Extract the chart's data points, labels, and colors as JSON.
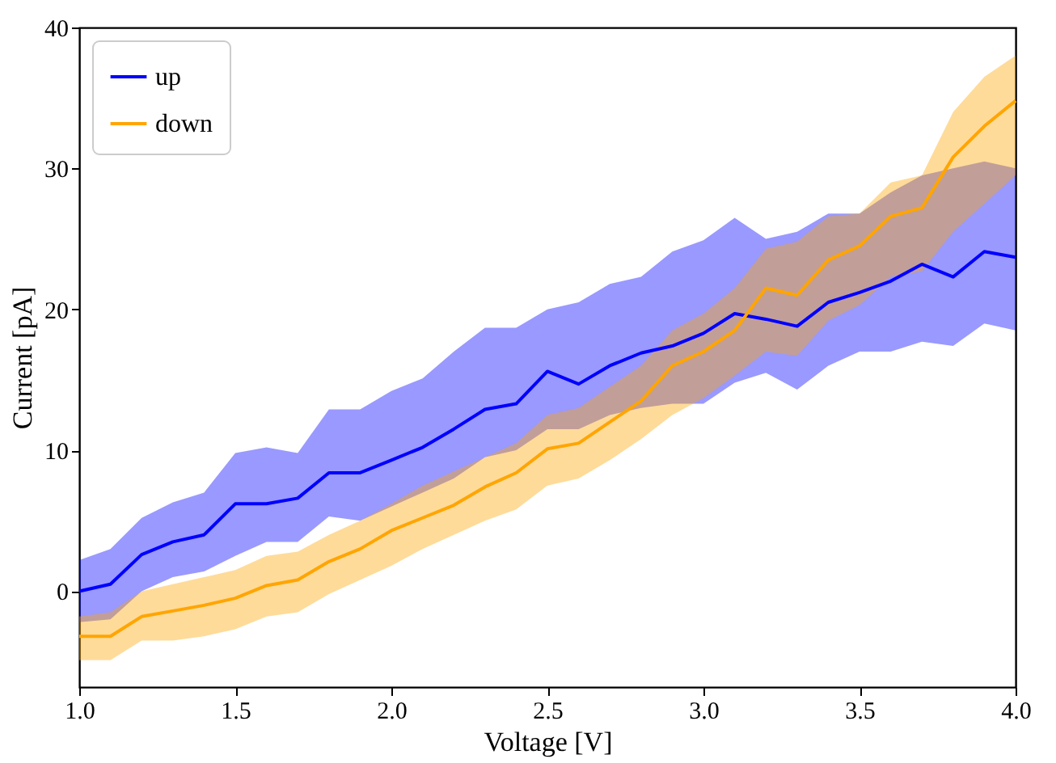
{
  "chart_data": {
    "type": "line",
    "xlabel": "Voltage [V]",
    "ylabel": "Current [pA]",
    "x": [
      1.0,
      1.1,
      1.2,
      1.3,
      1.4,
      1.5,
      1.6,
      1.7,
      1.8,
      1.9,
      2.0,
      2.1,
      2.2,
      2.3,
      2.4,
      2.5,
      2.6,
      2.7,
      2.8,
      2.9,
      3.0,
      3.1,
      3.2,
      3.3,
      3.4,
      3.5,
      3.6,
      3.7,
      3.8,
      3.9,
      4.0
    ],
    "series": [
      {
        "name": "up",
        "color": "#0000ff",
        "values": [
          0,
          0.5,
          2.6,
          3.5,
          4,
          6.2,
          6.2,
          6.6,
          8.4,
          8.4,
          9.3,
          10.2,
          11.5,
          12.9,
          13.3,
          15.6,
          14.7,
          16.0,
          16.9,
          17.4,
          18.3,
          19.7,
          19.3,
          18.8,
          20.5,
          21.2,
          22,
          23.2,
          22.3,
          24.1,
          23.7
        ],
        "lower": [
          -2.2,
          -2,
          0,
          1,
          1.4,
          2.5,
          3.5,
          3.5,
          5.3,
          5,
          6,
          7,
          8,
          9.5,
          10,
          11.5,
          11.5,
          12.5,
          13,
          13.3,
          13.3,
          14.8,
          15.5,
          14.3,
          16,
          17,
          17,
          17.7,
          17.4,
          19,
          18.5
        ],
        "upper": [
          2.2,
          3,
          5.2,
          6.3,
          7,
          9.8,
          10.2,
          9.8,
          12.9,
          12.9,
          14.2,
          15.1,
          17,
          18.7,
          18.7,
          20,
          20.5,
          21.8,
          22.3,
          24.1,
          24.9,
          26.5,
          25,
          25.5,
          26.8,
          26.8,
          28.3,
          29.5,
          30,
          30.5,
          30
        ]
      },
      {
        "name": "down",
        "color": "#ffa500",
        "values": [
          -3.2,
          -3.2,
          -1.8,
          -1.4,
          -1,
          -0.5,
          0.4,
          0.8,
          2.1,
          3.0,
          4.3,
          5.2,
          6.1,
          7.4,
          8.4,
          10.1,
          10.5,
          12.0,
          13.5,
          16.0,
          17.0,
          18.5,
          21.5,
          21.0,
          23.5,
          24.5,
          26.6,
          27.2,
          30.8,
          33,
          34.8
        ],
        "lower": [
          -4.9,
          -4.9,
          -3.5,
          -3.5,
          -3.2,
          -2.7,
          -1.8,
          -1.5,
          -0.2,
          0.8,
          1.8,
          3,
          4,
          5,
          5.8,
          7.5,
          8,
          9.3,
          10.8,
          12.5,
          13.7,
          15.3,
          17,
          16.7,
          19.2,
          20.3,
          22.3,
          22.7,
          25.5,
          27.5,
          29.5
        ],
        "upper": [
          -1.8,
          -1.5,
          0,
          0.5,
          1,
          1.5,
          2.5,
          2.8,
          4,
          5,
          6.2,
          7.5,
          8.5,
          9.5,
          10.5,
          12.5,
          13,
          14.5,
          16,
          18.5,
          19.7,
          21.5,
          24.3,
          24.8,
          26.6,
          26.8,
          29,
          29.5,
          34,
          36.5,
          38
        ]
      }
    ],
    "xlim": [
      1.0,
      4.0
    ],
    "xticks": [
      {
        "value": 1.0,
        "label": "1.0"
      },
      {
        "value": 1.5,
        "label": "1.5"
      },
      {
        "value": 2.0,
        "label": "2.0"
      },
      {
        "value": 2.5,
        "label": "2.5"
      },
      {
        "value": 3.0,
        "label": "3.0"
      },
      {
        "value": 3.5,
        "label": "3.5"
      },
      {
        "value": 4.0,
        "label": "4.0"
      }
    ],
    "ylim": [
      -6.8,
      40
    ],
    "yticks": [
      0,
      10,
      20,
      30,
      40
    ],
    "grid": false,
    "legend": "top left",
    "marker": "none",
    "line_style": "solid"
  }
}
